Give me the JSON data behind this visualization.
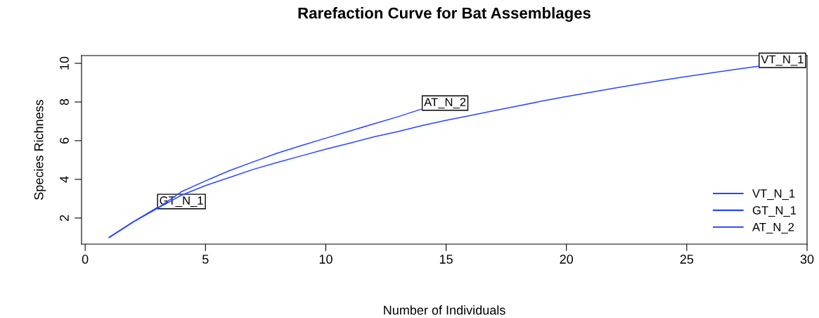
{
  "chart_data": {
    "type": "line",
    "title": "Rarefaction Curve for Bat Assemblages",
    "xlabel": "Number of Individuals",
    "ylabel": "Species Richness",
    "xlim": [
      -0.15,
      30
    ],
    "xticks": [
      0,
      5,
      10,
      15,
      20,
      25,
      30
    ],
    "ylim": [
      0.65,
      10.4
    ],
    "yticks": [
      2,
      4,
      6,
      8,
      10
    ],
    "series": [
      {
        "name": "VT_N_1",
        "color": "#2846ff",
        "x": [
          1,
          2,
          3,
          4,
          5,
          6,
          7,
          8,
          9,
          10,
          11,
          12,
          13,
          14,
          15,
          16,
          17,
          18,
          19,
          20,
          21,
          22,
          23,
          24,
          25,
          26,
          27,
          28
        ],
        "values": [
          1,
          1.8,
          2.5,
          3.18,
          3.68,
          4.1,
          4.52,
          4.88,
          5.22,
          5.56,
          5.87,
          6.2,
          6.47,
          6.78,
          7.05,
          7.3,
          7.55,
          7.8,
          8.05,
          8.28,
          8.5,
          8.72,
          8.93,
          9.13,
          9.32,
          9.5,
          9.68,
          9.85
        ]
      },
      {
        "name": "GT_N_1",
        "color": "#2846ff",
        "x": [
          1,
          2,
          3
        ],
        "values": [
          1,
          1.8,
          2.55
        ]
      },
      {
        "name": "AT_N_2",
        "color": "#2846ff",
        "x": [
          1,
          2,
          3,
          4,
          5,
          6,
          7,
          8,
          9,
          10,
          11,
          12,
          13,
          14
        ],
        "values": [
          1,
          1.8,
          2.5,
          3.36,
          3.92,
          4.45,
          4.91,
          5.36,
          5.75,
          6.13,
          6.5,
          6.87,
          7.24,
          7.64
        ]
      }
    ],
    "annotations": [
      {
        "text": "VT_N_1",
        "x": 28,
        "y": 9.85
      },
      {
        "text": "GT_N_1",
        "x": 3,
        "y": 2.55
      },
      {
        "text": "AT_N_2",
        "x": 14,
        "y": 7.64
      }
    ],
    "legend": "bottom right",
    "grid": false
  }
}
